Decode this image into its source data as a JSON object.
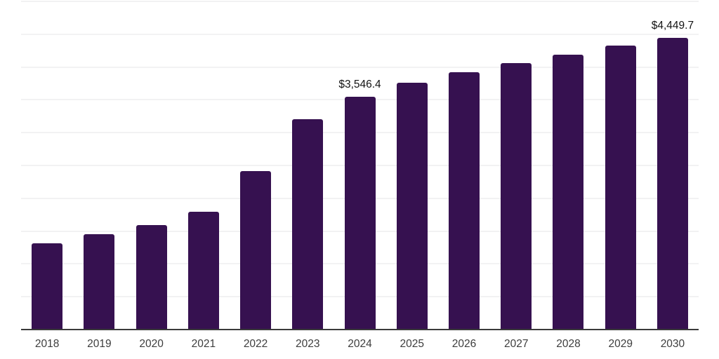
{
  "chart_data": {
    "type": "bar",
    "title": "",
    "xlabel": "",
    "ylabel": "",
    "categories": [
      "2018",
      "2019",
      "2020",
      "2021",
      "2022",
      "2023",
      "2024",
      "2025",
      "2026",
      "2027",
      "2028",
      "2029",
      "2030"
    ],
    "values": [
      1315,
      1450,
      1590,
      1790,
      2420,
      3205,
      3546.4,
      3765,
      3920,
      4055,
      4185,
      4325,
      4449.7
    ],
    "labeled_points": [
      {
        "category": "2024",
        "label": "$3,546.4"
      },
      {
        "category": "2030",
        "label": "$4,449.7"
      }
    ],
    "ylim": [
      0,
      5000
    ],
    "grid_step": 500,
    "grid": "horizontal-only",
    "legend": "none",
    "y_axis_labels_visible": false,
    "colors": {
      "bar": "#361150",
      "gridline": "#f2f2f3",
      "axis_line": "#3a3a3a",
      "tick_label": "#3d3d3d",
      "value_label": "#141414",
      "background": "#ffffff"
    }
  }
}
